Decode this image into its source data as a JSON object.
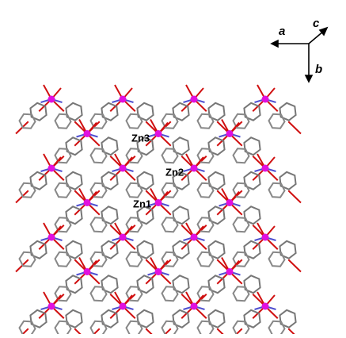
{
  "axes": {
    "a": "a",
    "c": "c",
    "b": "b"
  },
  "labels": {
    "zn1": "Zn1",
    "zn2": "Zn2",
    "zn3": "Zn3"
  }
}
